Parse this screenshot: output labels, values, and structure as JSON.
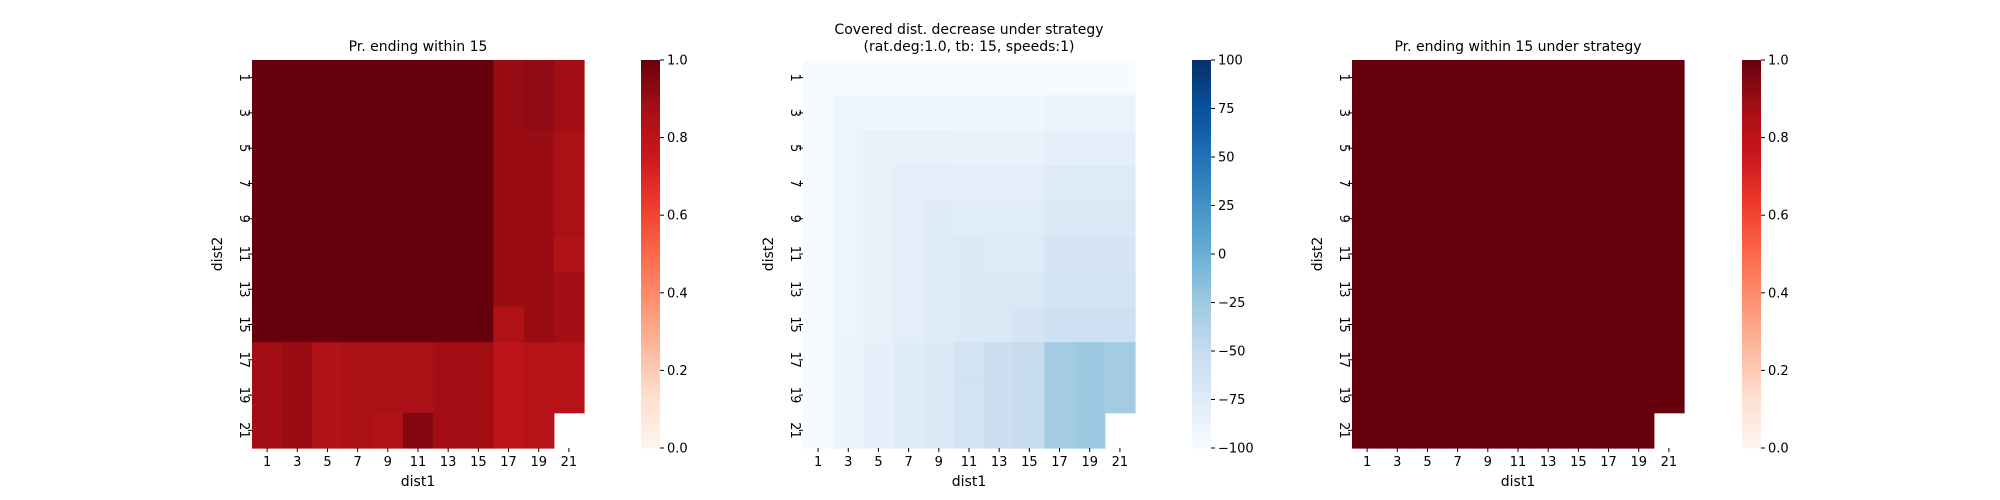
{
  "chart_data": [
    {
      "type": "heatmap",
      "title": "Pr. ending within 15",
      "xlabel": "dist1",
      "ylabel": "dist2",
      "x_tick_labels": [
        "1",
        "3",
        "5",
        "7",
        "9",
        "11",
        "13",
        "15",
        "17",
        "19",
        "21"
      ],
      "y_tick_labels": [
        "1",
        "3",
        "5",
        "7",
        "9",
        "11",
        "13",
        "15",
        "17",
        "19",
        "21"
      ],
      "colormap": "Reds",
      "vmin": 0.0,
      "vmax": 1.0,
      "colorbar_ticks": [
        "0.0",
        "0.2",
        "0.4",
        "0.6",
        "0.8",
        "1.0"
      ],
      "grid_rows": 11,
      "grid_cols": 11,
      "values": [
        [
          1,
          1,
          1,
          1,
          1,
          1,
          1,
          1,
          0.9,
          0.92,
          0.88
        ],
        [
          1,
          1,
          1,
          1,
          1,
          1,
          1,
          1,
          0.9,
          0.92,
          0.88
        ],
        [
          1,
          1,
          1,
          1,
          1,
          1,
          1,
          1,
          0.9,
          0.9,
          0.86
        ],
        [
          1,
          1,
          1,
          1,
          1,
          1,
          1,
          1,
          0.9,
          0.9,
          0.86
        ],
        [
          1,
          1,
          1,
          1,
          1,
          1,
          1,
          1,
          0.9,
          0.9,
          0.86
        ],
        [
          1,
          1,
          1,
          1,
          1,
          1,
          1,
          1,
          0.9,
          0.9,
          0.84
        ],
        [
          1,
          1,
          1,
          1,
          1,
          1,
          1,
          1,
          0.9,
          0.9,
          0.88
        ],
        [
          1,
          1,
          1,
          1,
          1,
          1,
          1,
          1,
          0.84,
          0.9,
          0.88
        ],
        [
          0.88,
          0.9,
          0.84,
          0.86,
          0.86,
          0.86,
          0.88,
          0.88,
          0.8,
          0.82,
          0.82
        ],
        [
          0.88,
          0.9,
          0.84,
          0.86,
          0.86,
          0.86,
          0.88,
          0.88,
          0.8,
          0.82,
          0.82
        ],
        [
          0.88,
          0.9,
          0.84,
          0.86,
          0.84,
          0.94,
          0.88,
          0.88,
          0.8,
          0.82,
          null
        ]
      ]
    },
    {
      "type": "heatmap",
      "title": "Covered dist. decrease under strategy",
      "subtitle": "(rat.deg:1.0, tb: 15, speeds:1)",
      "xlabel": "dist1",
      "ylabel": "dist2",
      "x_tick_labels": [
        "1",
        "3",
        "5",
        "7",
        "9",
        "11",
        "13",
        "15",
        "17",
        "19",
        "21"
      ],
      "y_tick_labels": [
        "1",
        "3",
        "5",
        "7",
        "9",
        "11",
        "13",
        "15",
        "17",
        "19",
        "21"
      ],
      "colormap": "Blues",
      "vmin": -100,
      "vmax": 100,
      "colorbar_ticks": [
        "100",
        "75",
        "50",
        "25",
        "0",
        "−25",
        "−50",
        "−75",
        "−100"
      ],
      "grid_rows": 11,
      "grid_cols": 11,
      "values": [
        [
          -100,
          -100,
          -100,
          -100,
          -100,
          -100,
          -100,
          -100,
          -100,
          -100,
          -100
        ],
        [
          -100,
          -90,
          -92,
          -92,
          -92,
          -92,
          -92,
          -92,
          -88,
          -88,
          -88
        ],
        [
          -100,
          -90,
          -85,
          -85,
          -85,
          -86,
          -86,
          -86,
          -82,
          -82,
          -82
        ],
        [
          -100,
          -90,
          -85,
          -80,
          -80,
          -82,
          -82,
          -82,
          -75,
          -75,
          -75
        ],
        [
          -100,
          -90,
          -85,
          -80,
          -76,
          -77,
          -77,
          -77,
          -70,
          -70,
          -70
        ],
        [
          -100,
          -90,
          -85,
          -80,
          -76,
          -73,
          -74,
          -74,
          -66,
          -66,
          -66
        ],
        [
          -100,
          -90,
          -85,
          -80,
          -76,
          -73,
          -70,
          -70,
          -62,
          -62,
          -62
        ],
        [
          -100,
          -90,
          -85,
          -80,
          -76,
          -73,
          -70,
          -66,
          -58,
          -58,
          -58
        ],
        [
          -100,
          -88,
          -82,
          -76,
          -72,
          -62,
          -56,
          -52,
          -28,
          -24,
          -28
        ],
        [
          -100,
          -88,
          -82,
          -76,
          -72,
          -62,
          -56,
          -52,
          -28,
          -24,
          -28
        ],
        [
          -100,
          -88,
          -82,
          -76,
          -72,
          -62,
          -56,
          -52,
          -28,
          -24,
          null
        ]
      ]
    },
    {
      "type": "heatmap",
      "title": "Pr. ending within 15 under strategy",
      "xlabel": "dist1",
      "ylabel": "dist2",
      "x_tick_labels": [
        "1",
        "3",
        "5",
        "7",
        "9",
        "11",
        "13",
        "15",
        "17",
        "19",
        "21"
      ],
      "y_tick_labels": [
        "1",
        "3",
        "5",
        "7",
        "9",
        "11",
        "13",
        "15",
        "17",
        "19",
        "21"
      ],
      "colormap": "Reds",
      "vmin": 0.0,
      "vmax": 1.0,
      "colorbar_ticks": [
        "0.0",
        "0.2",
        "0.4",
        "0.6",
        "0.8",
        "1.0"
      ],
      "grid_rows": 11,
      "grid_cols": 11,
      "values": [
        [
          1,
          1,
          1,
          1,
          1,
          1,
          1,
          1,
          1,
          1,
          1
        ],
        [
          1,
          1,
          1,
          1,
          1,
          1,
          1,
          1,
          1,
          1,
          1
        ],
        [
          1,
          1,
          1,
          1,
          1,
          1,
          1,
          1,
          1,
          1,
          1
        ],
        [
          1,
          1,
          1,
          1,
          1,
          1,
          1,
          1,
          1,
          1,
          1
        ],
        [
          1,
          1,
          1,
          1,
          1,
          1,
          1,
          1,
          1,
          1,
          1
        ],
        [
          1,
          1,
          1,
          1,
          1,
          1,
          1,
          1,
          1,
          1,
          1
        ],
        [
          1,
          1,
          1,
          1,
          1,
          1,
          1,
          1,
          1,
          1,
          1
        ],
        [
          1,
          1,
          1,
          1,
          1,
          1,
          1,
          1,
          1,
          1,
          1
        ],
        [
          1,
          1,
          1,
          1,
          1,
          1,
          1,
          1,
          1,
          1,
          1
        ],
        [
          1,
          1,
          1,
          1,
          1,
          1,
          1,
          1,
          1,
          1,
          1
        ],
        [
          1,
          1,
          1,
          1,
          1,
          1,
          1,
          1,
          1,
          1,
          null
        ]
      ]
    }
  ]
}
